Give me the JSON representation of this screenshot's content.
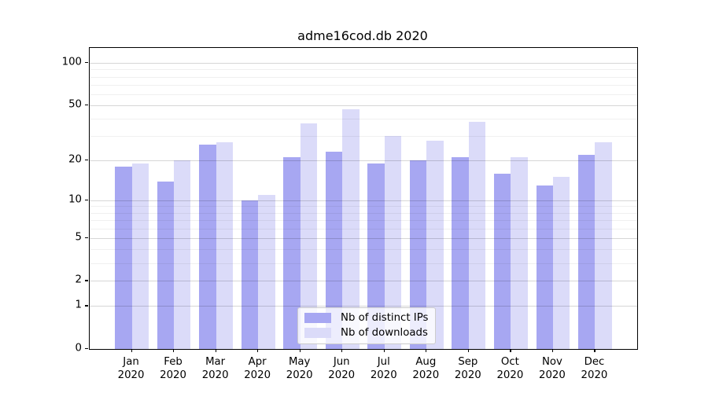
{
  "title": "adme16cod.db 2020",
  "chart_data": {
    "type": "bar",
    "title": "adme16cod.db 2020",
    "xlabel": "",
    "ylabel": "",
    "scale": "log10(1+x)",
    "log_top_decades": 2.11,
    "categories": [
      "Jan",
      "Feb",
      "Mar",
      "Apr",
      "May",
      "Jun",
      "Jul",
      "Aug",
      "Sep",
      "Oct",
      "Nov",
      "Dec"
    ],
    "category_year": "2020",
    "series": [
      {
        "name": "Nb of distinct IPs",
        "color": "#a7a7f2",
        "values": [
          18,
          14,
          26,
          10,
          21,
          23,
          19,
          20,
          21,
          16,
          13,
          22
        ]
      },
      {
        "name": "Nb of downloads",
        "color": "#dbdbf9",
        "values": [
          19,
          20,
          27,
          11,
          37,
          47,
          30,
          28,
          38,
          21,
          15,
          27
        ]
      }
    ],
    "yticks": [
      0,
      1,
      2,
      5,
      10,
      20,
      50,
      100
    ],
    "minor_gridlines": [
      3,
      4,
      6,
      7,
      8,
      9,
      30,
      40,
      60,
      70,
      80,
      90
    ],
    "ylim": [
      0,
      128
    ],
    "grid": true,
    "legend_position": "bottom-center"
  }
}
